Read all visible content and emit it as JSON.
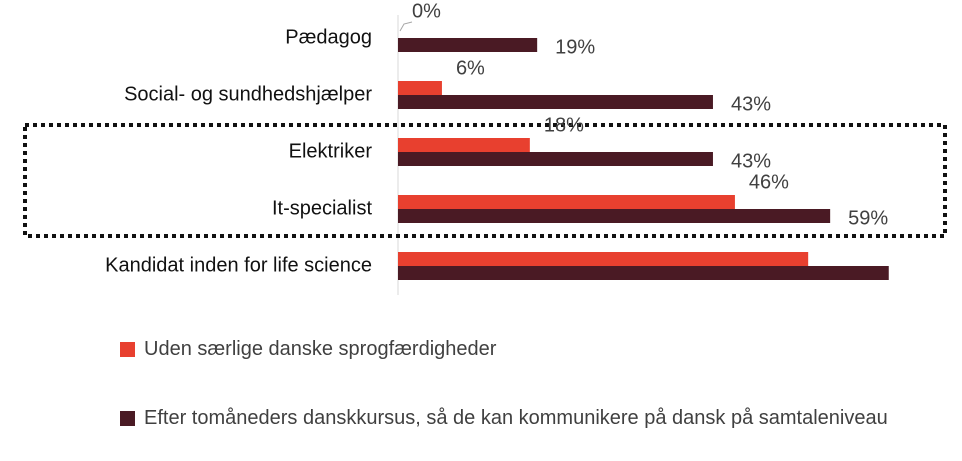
{
  "chart_data": {
    "type": "bar",
    "orientation": "horizontal",
    "categories": [
      "Pædagog",
      "Social- og sundhedshjælper",
      "Elektriker",
      "It-specialist",
      "Kandidat inden for life science"
    ],
    "series": [
      {
        "name": "Uden særlige danske sprogfærdigheder",
        "color": "#e8402f",
        "values": [
          0,
          6,
          18,
          46,
          56
        ],
        "value_labels": [
          "0%",
          "6%",
          "18%",
          "46%",
          null
        ]
      },
      {
        "name": "Efter tomåneders danskkursus, så de kan kommunikere på dansk på samtaleniveau",
        "color": "#4a1a24",
        "values": [
          19,
          43,
          43,
          59,
          67
        ],
        "value_labels": [
          "19%",
          "43%",
          "43%",
          "59%",
          null
        ]
      }
    ],
    "xlim": [
      0,
      77
    ]
  }
}
